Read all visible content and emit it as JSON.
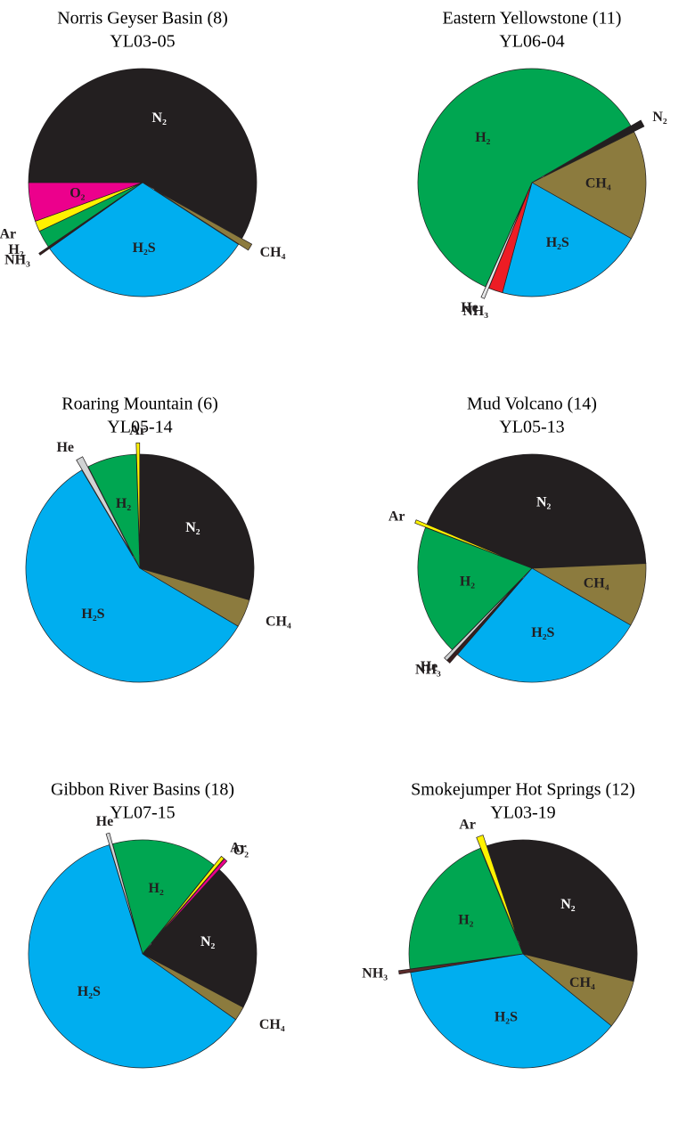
{
  "chart_data": [
    {
      "type": "pie",
      "title": "Norris Geyser Basin (8)",
      "subtitle": "YL03-05",
      "startangle": 270,
      "labels": [
        "N₂",
        "CH₄",
        "H₂S",
        "NH₃",
        "H₂",
        "Ar",
        "O₂"
      ],
      "values": [
        58,
        1,
        31,
        0.3,
        2.5,
        1.5,
        5.5
      ],
      "colors": [
        "#231f20",
        "#8c7b3e",
        "#00aeef",
        "#3a1e1e",
        "#00a651",
        "#fff200",
        "#ec008c"
      ],
      "explode": [
        false,
        true,
        false,
        true,
        false,
        false,
        false
      ]
    },
    {
      "type": "pie",
      "title": "Eastern Yellowstone (11)",
      "subtitle": "YL06-04",
      "startangle": 60,
      "labels": [
        "N₂",
        "CH₄",
        "H₂S",
        "NH₃",
        "He",
        "H₂"
      ],
      "values": [
        1,
        15.5,
        21,
        2,
        0.5,
        60
      ],
      "colors": [
        "#231f20",
        "#8c7b3e",
        "#00aeef",
        "#ed1c24",
        "#e6e7e8",
        "#00a651"
      ],
      "explode": [
        true,
        false,
        false,
        false,
        true,
        false
      ]
    },
    {
      "type": "pie",
      "title": "Roaring Mountain (6)",
      "subtitle": "YL05-14",
      "startangle": 0,
      "labels": [
        "N₂",
        "CH₄",
        "H₂S",
        "He",
        "H₂",
        "Ar"
      ],
      "values": [
        29.5,
        4,
        58,
        1,
        7,
        0.5
      ],
      "colors": [
        "#231f20",
        "#8c7b3e",
        "#00aeef",
        "#d1d3d4",
        "#00a651",
        "#fff200"
      ],
      "explode": [
        false,
        false,
        false,
        true,
        false,
        true
      ]
    },
    {
      "type": "pie",
      "title": "Mud Volcano (14)",
      "subtitle": "YL05-13",
      "startangle": 291,
      "labels": [
        "Ar",
        "N₂",
        "CH₄",
        "H₂S",
        "NH₃",
        "He",
        "H₂"
      ],
      "values": [
        0.5,
        43,
        9,
        28,
        0.5,
        0.5,
        18.5
      ],
      "colors": [
        "#fff200",
        "#231f20",
        "#8c7b3e",
        "#00aeef",
        "#3a1e1e",
        "#d1d3d4",
        "#00a651"
      ],
      "explode": [
        true,
        false,
        false,
        false,
        true,
        true,
        false
      ]
    },
    {
      "type": "pie",
      "title": "Gibbon River Basins (18)",
      "subtitle": "YL07-15",
      "startangle": 343,
      "labels": [
        "He",
        "H₂",
        "Ar",
        "O₂",
        "N₂",
        "CH₄",
        "H₂S"
      ],
      "values": [
        0.5,
        15,
        0.5,
        0.5,
        21,
        2,
        60.5
      ],
      "colors": [
        "#d1d3d4",
        "#00a651",
        "#fff200",
        "#ec008c",
        "#231f20",
        "#8c7b3e",
        "#00aeef"
      ],
      "explode": [
        true,
        false,
        true,
        true,
        false,
        false,
        false
      ]
    },
    {
      "type": "pie",
      "title": "Smokejumper Hot Springs (12)",
      "subtitle": "YL03-19",
      "startangle": 338,
      "labels": [
        "Ar",
        "N₂",
        "CH₄",
        "H₂S",
        "NH₃",
        "H₂"
      ],
      "values": [
        1,
        34,
        7,
        36.5,
        0.5,
        21
      ],
      "colors": [
        "#fff200",
        "#231f20",
        "#8c7b3e",
        "#00aeef",
        "#5a2a2a",
        "#00a651"
      ],
      "explode": [
        true,
        false,
        false,
        false,
        true,
        false
      ]
    }
  ]
}
